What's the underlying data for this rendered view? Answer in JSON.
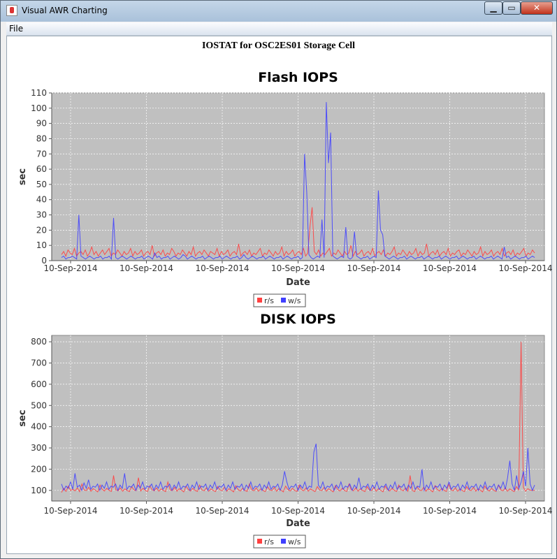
{
  "window": {
    "title": "Visual AWR Charting",
    "minimize_glyph": "▁",
    "maximize_glyph": "▭",
    "close_glyph": "✕"
  },
  "menu": {
    "items": [
      {
        "label": "File"
      }
    ]
  },
  "page_title": "IOSTAT for OSC2ES01 Storage Cell",
  "colors": {
    "plot_bg": "#c0c0c0",
    "gridline": "#ffffff",
    "r_s": "#ff4040",
    "w_s": "#4040ff"
  },
  "chart_data": [
    {
      "type": "line",
      "title": "Flash IOPS",
      "xlabel": "Date",
      "ylabel": "sec",
      "ylim": [
        0,
        110
      ],
      "yticks": [
        0,
        10,
        20,
        30,
        40,
        50,
        60,
        70,
        80,
        90,
        100,
        110
      ],
      "xticks": [
        "10-Sep-2014",
        "10-Sep-2014",
        "10-Sep-2014",
        "10-Sep-2014",
        "10-Sep-2014",
        "10-Sep-2014",
        "10-Sep-2014"
      ],
      "grid": true,
      "legend": "bottom-center",
      "series": [
        {
          "name": "r/s",
          "color": "#ff4040",
          "values": [
            4,
            6,
            3,
            7,
            5,
            4,
            8,
            3,
            5,
            6,
            4,
            7,
            3,
            5,
            9,
            4,
            6,
            3,
            5,
            7,
            4,
            6,
            8,
            3,
            5,
            4,
            7,
            5,
            3,
            6,
            4,
            5,
            8,
            3,
            6,
            4,
            5,
            7,
            3,
            5,
            6,
            4,
            10,
            3,
            5,
            6,
            4,
            7,
            3,
            5,
            4,
            8,
            6,
            3,
            5,
            4,
            7,
            5,
            3,
            6,
            4,
            9,
            3,
            5,
            6,
            4,
            7,
            5,
            3,
            6,
            5,
            4,
            8,
            3,
            6,
            4,
            5,
            7,
            3,
            5,
            6,
            4,
            11,
            3,
            5,
            6,
            4,
            7,
            3,
            5,
            4,
            6,
            8,
            3,
            5,
            4,
            7,
            5,
            3,
            6,
            4,
            5,
            9,
            3,
            6,
            4,
            5,
            7,
            3,
            5,
            6,
            4,
            8,
            3,
            5,
            22,
            35,
            6,
            4,
            7,
            3,
            5,
            4,
            6,
            8,
            3,
            5,
            4,
            7,
            5,
            3,
            6,
            4,
            5,
            10,
            3,
            6,
            4,
            5,
            7,
            3,
            5,
            6,
            4,
            8,
            3,
            5,
            6,
            4,
            7,
            3,
            5,
            4,
            6,
            9,
            3,
            5,
            4,
            7,
            5,
            3,
            6,
            4,
            5,
            8,
            3,
            6,
            4,
            5,
            11,
            3,
            5,
            6,
            4,
            7,
            3,
            5,
            6,
            4,
            8,
            3,
            5,
            4,
            6,
            7,
            3,
            5,
            4,
            7,
            5,
            3,
            6,
            4,
            5,
            9,
            3,
            6,
            4,
            5,
            7,
            3,
            5,
            6,
            4,
            8,
            3,
            5,
            6,
            4,
            7,
            3,
            5,
            4,
            6,
            8,
            3,
            5,
            4,
            7,
            5
          ]
        },
        {
          "name": "w/s",
          "color": "#4040ff",
          "values": [
            2,
            3,
            1,
            2,
            2,
            3,
            2,
            1,
            30,
            3,
            2,
            1,
            2,
            3,
            2,
            1,
            2,
            2,
            3,
            1,
            2,
            2,
            3,
            1,
            28,
            2,
            1,
            2,
            3,
            2,
            1,
            2,
            3,
            2,
            1,
            2,
            2,
            3,
            1,
            2,
            3,
            2,
            1,
            5,
            2,
            3,
            1,
            2,
            2,
            3,
            1,
            2,
            3,
            2,
            1,
            2,
            4,
            3,
            1,
            2,
            3,
            2,
            1,
            2,
            2,
            3,
            1,
            2,
            3,
            2,
            1,
            2,
            2,
            3,
            1,
            2,
            3,
            2,
            1,
            2,
            2,
            3,
            1,
            2,
            4,
            2,
            1,
            2,
            3,
            2,
            1,
            2,
            2,
            3,
            1,
            2,
            3,
            2,
            1,
            2,
            2,
            3,
            1,
            2,
            3,
            2,
            1,
            2,
            2,
            3,
            1,
            2,
            70,
            45,
            4,
            2,
            1,
            2,
            3,
            2,
            27,
            2,
            104,
            64,
            84,
            3,
            2,
            1,
            2,
            3,
            2,
            22,
            2,
            1,
            2,
            19,
            3,
            2,
            1,
            2,
            2,
            3,
            1,
            2,
            3,
            2,
            46,
            20,
            17,
            3,
            2,
            1,
            2,
            3,
            2,
            1,
            2,
            2,
            3,
            1,
            2,
            3,
            2,
            1,
            2,
            2,
            3,
            1,
            2,
            3,
            2,
            1,
            2,
            2,
            3,
            1,
            2,
            3,
            2,
            1,
            2,
            2,
            3,
            1,
            2,
            3,
            2,
            1,
            2,
            2,
            3,
            1,
            2,
            3,
            2,
            1,
            2,
            2,
            3,
            1,
            2,
            3,
            2,
            1,
            9,
            2,
            3,
            1,
            2,
            3,
            2,
            1,
            2,
            2,
            3,
            1,
            2,
            3,
            2
          ]
        }
      ]
    },
    {
      "type": "line",
      "title": "DISK IOPS",
      "xlabel": "Date",
      "ylabel": "sec",
      "ylim": [
        50,
        830
      ],
      "yticks": [
        100,
        200,
        300,
        400,
        500,
        600,
        700,
        800
      ],
      "xticks": [
        "10-Sep-2014",
        "10-Sep-2014",
        "10-Sep-2014",
        "10-Sep-2014",
        "10-Sep-2014",
        "10-Sep-2014",
        "10-Sep-2014"
      ],
      "grid": true,
      "legend": "bottom-center",
      "series": [
        {
          "name": "r/s",
          "color": "#ff4040",
          "values": [
            90,
            110,
            95,
            120,
            100,
            105,
            98,
            112,
            94,
            130,
            102,
            99,
            115,
            96,
            108,
            101,
            93,
            125,
            104,
            97,
            110,
            100,
            95,
            170,
            103,
            98,
            112,
            96,
            107,
            100,
            94,
            118,
            102,
            99,
            160,
            97,
            110,
            100,
            95,
            122,
            103,
            98,
            112,
            96,
            107,
            100,
            94,
            140,
            102,
            99,
            115,
            96,
            108,
            101,
            93,
            120,
            104,
            97,
            110,
            100,
            95,
            125,
            103,
            98,
            112,
            96,
            107,
            100,
            94,
            118,
            102,
            99,
            115,
            96,
            108,
            101,
            93,
            122,
            104,
            97,
            110,
            100,
            95,
            130,
            103,
            98,
            112,
            96,
            107,
            100,
            94,
            118,
            102,
            99,
            115,
            96,
            108,
            101,
            93,
            120,
            104,
            97,
            110,
            100,
            95,
            125,
            103,
            98,
            112,
            96,
            107,
            100,
            94,
            118,
            102,
            99,
            115,
            96,
            108,
            101,
            93,
            122,
            104,
            97,
            110,
            100,
            95,
            130,
            103,
            98,
            112,
            96,
            107,
            100,
            94,
            118,
            102,
            99,
            115,
            96,
            108,
            101,
            93,
            120,
            104,
            97,
            110,
            100,
            95,
            125,
            103,
            98,
            112,
            96,
            170,
            100,
            94,
            118,
            102,
            99,
            115,
            96,
            108,
            101,
            93,
            122,
            104,
            97,
            110,
            100,
            95,
            130,
            103,
            98,
            112,
            96,
            107,
            100,
            94,
            118,
            102,
            99,
            115,
            96,
            108,
            101,
            93,
            120,
            104,
            97,
            110,
            100,
            95,
            125,
            103,
            98,
            112,
            96,
            107,
            100,
            94,
            118,
            102,
            800,
            115,
            96,
            108,
            101,
            100,
            100
          ]
        },
        {
          "name": "w/s",
          "color": "#4040ff",
          "values": [
            130,
            100,
            120,
            110,
            140,
            105,
            180,
            115,
            125,
            100,
            135,
            110,
            150,
            105,
            120,
            115,
            130,
            100,
            125,
            110,
            140,
            105,
            120,
            115,
            130,
            100,
            125,
            110,
            180,
            105,
            120,
            115,
            130,
            100,
            125,
            110,
            140,
            105,
            120,
            115,
            130,
            100,
            125,
            110,
            140,
            105,
            120,
            115,
            130,
            100,
            125,
            110,
            140,
            105,
            120,
            115,
            130,
            100,
            125,
            110,
            140,
            105,
            120,
            115,
            130,
            100,
            125,
            110,
            140,
            105,
            120,
            115,
            130,
            100,
            125,
            110,
            140,
            105,
            120,
            115,
            130,
            100,
            125,
            110,
            140,
            105,
            120,
            115,
            130,
            100,
            125,
            110,
            140,
            105,
            120,
            115,
            130,
            100,
            125,
            190,
            140,
            105,
            120,
            115,
            130,
            100,
            125,
            110,
            140,
            105,
            120,
            115,
            280,
            320,
            125,
            110,
            140,
            105,
            120,
            115,
            130,
            100,
            125,
            110,
            140,
            105,
            120,
            115,
            130,
            100,
            125,
            110,
            160,
            105,
            120,
            115,
            130,
            100,
            125,
            110,
            140,
            105,
            120,
            115,
            130,
            100,
            125,
            110,
            140,
            105,
            120,
            115,
            130,
            100,
            125,
            110,
            140,
            105,
            120,
            115,
            200,
            100,
            125,
            110,
            140,
            105,
            120,
            115,
            130,
            100,
            125,
            110,
            140,
            105,
            120,
            115,
            130,
            100,
            125,
            110,
            140,
            105,
            120,
            115,
            130,
            100,
            125,
            110,
            140,
            105,
            120,
            115,
            130,
            100,
            125,
            110,
            140,
            105,
            160,
            240,
            130,
            100,
            170,
            110,
            140,
            190,
            120,
            300,
            130,
            100,
            125
          ]
        }
      ]
    }
  ]
}
